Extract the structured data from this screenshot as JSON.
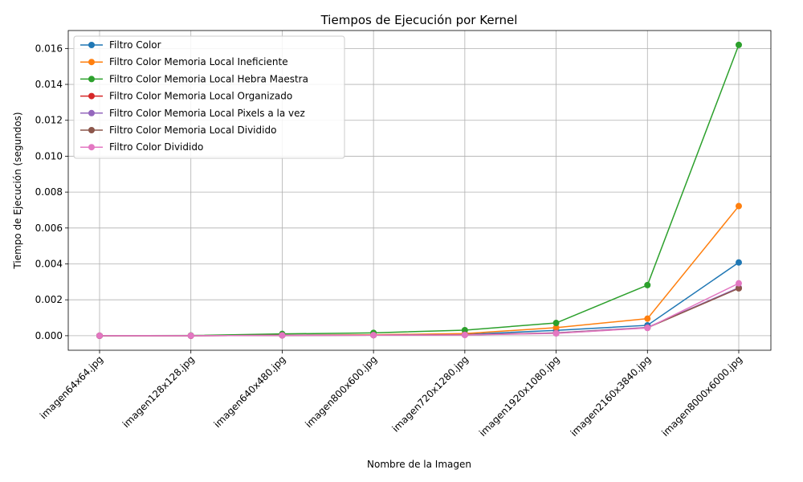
{
  "chart_data": {
    "type": "line",
    "title": "Tiempos de Ejecución por Kernel",
    "xlabel": "Nombre de la Imagen",
    "ylabel": "Tiempo de Ejecución (segundos)",
    "categories": [
      "imagen64x64.jpg",
      "imagen128x128.jpg",
      "imagen640x480.jpg",
      "imagen800x600.jpg",
      "imagen720x1280.jpg",
      "imagen1920x1080.jpg",
      "imagen2160x3840.jpg",
      "imagen8000x6000.jpg"
    ],
    "ylim": [
      -0.00081,
      0.017
    ],
    "yticks": [
      "0.000",
      "0.002",
      "0.004",
      "0.006",
      "0.008",
      "0.010",
      "0.012",
      "0.014",
      "0.016"
    ],
    "grid": true,
    "legend_position": "upper-left",
    "series": [
      {
        "name": "Filtro Color",
        "color": "#1f77b4",
        "values": [
          0.0,
          0.0,
          3e-05,
          4e-05,
          7e-05,
          0.0003,
          0.00058,
          0.00408
        ]
      },
      {
        "name": "Filtro Color Memoria Local Ineficiente",
        "color": "#ff7f0e",
        "values": [
          0.0,
          0.0,
          3e-05,
          5e-05,
          0.00012,
          0.00045,
          0.00095,
          0.00722
        ]
      },
      {
        "name": "Filtro Color Memoria Local Hebra Maestra",
        "color": "#2ca02c",
        "values": [
          0.0,
          1e-05,
          0.0001,
          0.00016,
          0.00031,
          0.00071,
          0.00282,
          0.0162
        ]
      },
      {
        "name": "Filtro Color Memoria Local Organizado",
        "color": "#d62728",
        "values": [
          0.0,
          0.0,
          2e-05,
          3e-05,
          5e-05,
          0.00015,
          0.00045,
          0.00265
        ]
      },
      {
        "name": "Filtro Color Memoria Local Pixels a la vez",
        "color": "#9467bd",
        "values": [
          0.0,
          0.0,
          2e-05,
          3e-05,
          5e-05,
          0.00016,
          0.00046,
          0.00268
        ]
      },
      {
        "name": "Filtro Color Memoria Local Dividido",
        "color": "#8c564b",
        "values": [
          0.0,
          0.0,
          2e-05,
          3e-05,
          5e-05,
          0.00014,
          0.00044,
          0.00264
        ]
      },
      {
        "name": "Filtro Color Dividido",
        "color": "#e377c2",
        "values": [
          0.0,
          0.0,
          2e-05,
          3e-05,
          4e-05,
          0.00013,
          0.00043,
          0.00292
        ]
      }
    ]
  }
}
